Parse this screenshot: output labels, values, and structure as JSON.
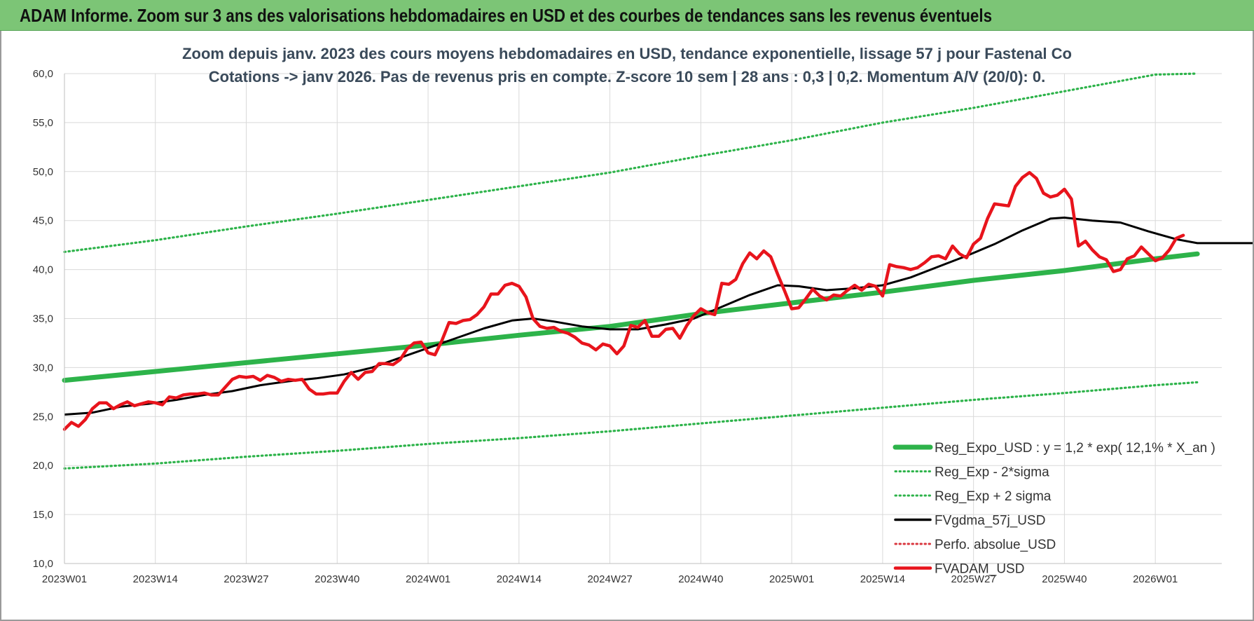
{
  "banner": {
    "title": "ADAM Informe. Zoom sur 3 ans des valorisations hebdomadaires en USD et des courbes de tendances sans les revenus éventuels"
  },
  "colors": {
    "banner_bg": "#7cc576",
    "regression": "#2db34a",
    "bands": "#2db34a",
    "smoothing": "#000000",
    "perfo": "#d9363e",
    "fvadam": "#e8141c",
    "grid": "#d9d9d9"
  },
  "chart_data": {
    "type": "line",
    "title": [
      "Zoom depuis janv. 2023 des cours moyens hebdomadaires en USD, tendance exponentielle, lissage 57 j pour Fastenal Co",
      "Cotations -> janv 2026. Pas de revenus pris en compte. Z-score 10 sem | 28 ans : 0,3 | 0,2. Momentum A/V (20/0): 0."
    ],
    "xlabel": "",
    "ylabel": "",
    "ylim": [
      10,
      60
    ],
    "y_ticks": [
      "10,0",
      "15,0",
      "20,0",
      "25,0",
      "30,0",
      "35,0",
      "40,0",
      "45,0",
      "50,0",
      "55,0",
      "60,0"
    ],
    "x_range_weeks": [
      0,
      162
    ],
    "x_ticks": [
      {
        "label": "2023W01",
        "week": 0
      },
      {
        "label": "2023W14",
        "week": 13
      },
      {
        "label": "2023W27",
        "week": 26
      },
      {
        "label": "2023W40",
        "week": 39
      },
      {
        "label": "2024W01",
        "week": 52
      },
      {
        "label": "2024W14",
        "week": 65
      },
      {
        "label": "2024W27",
        "week": 78
      },
      {
        "label": "2024W40",
        "week": 91
      },
      {
        "label": "2025W01",
        "week": 104
      },
      {
        "label": "2025W14",
        "week": 117
      },
      {
        "label": "2025W27",
        "week": 130
      },
      {
        "label": "2025W40",
        "week": 143
      },
      {
        "label": "2026W01",
        "week": 156
      }
    ],
    "grid": true,
    "legend_position": "bottom-right",
    "series": [
      {
        "name": "Reg_Expo_USD : y = 1,2 * exp( 12,1% *  X_an )",
        "style": "thick-solid",
        "color": "#2db34a",
        "points": [
          [
            0,
            28.7
          ],
          [
            13,
            29.6
          ],
          [
            26,
            30.5
          ],
          [
            39,
            31.4
          ],
          [
            52,
            32.3
          ],
          [
            65,
            33.3
          ],
          [
            78,
            34.2
          ],
          [
            91,
            35.5
          ],
          [
            104,
            36.6
          ],
          [
            117,
            37.7
          ],
          [
            130,
            38.9
          ],
          [
            143,
            39.9
          ],
          [
            156,
            41.1
          ],
          [
            162,
            41.6
          ]
        ]
      },
      {
        "name": "Reg_Exp - 2*sigma",
        "style": "dotted",
        "color": "#2db34a",
        "points": [
          [
            0,
            19.7
          ],
          [
            13,
            20.2
          ],
          [
            26,
            20.9
          ],
          [
            39,
            21.5
          ],
          [
            52,
            22.2
          ],
          [
            65,
            22.8
          ],
          [
            78,
            23.5
          ],
          [
            91,
            24.3
          ],
          [
            104,
            25.1
          ],
          [
            117,
            25.9
          ],
          [
            130,
            26.7
          ],
          [
            143,
            27.4
          ],
          [
            156,
            28.2
          ],
          [
            162,
            28.5
          ]
        ]
      },
      {
        "name": "Reg_Exp + 2 sigma",
        "style": "dotted",
        "color": "#2db34a",
        "points": [
          [
            0,
            41.8
          ],
          [
            13,
            43.0
          ],
          [
            26,
            44.4
          ],
          [
            39,
            45.7
          ],
          [
            52,
            47.1
          ],
          [
            65,
            48.5
          ],
          [
            78,
            49.9
          ],
          [
            91,
            51.6
          ],
          [
            104,
            53.2
          ],
          [
            117,
            55.0
          ],
          [
            130,
            56.5
          ],
          [
            143,
            58.2
          ],
          [
            156,
            59.9
          ],
          [
            162,
            60.0
          ]
        ]
      },
      {
        "name": "FVgdma_57j_USD",
        "style": "solid",
        "color": "#000000",
        "points": [
          [
            0,
            25.2
          ],
          [
            4,
            25.4
          ],
          [
            8,
            26.0
          ],
          [
            12,
            26.3
          ],
          [
            16,
            26.7
          ],
          [
            20,
            27.2
          ],
          [
            24,
            27.6
          ],
          [
            28,
            28.2
          ],
          [
            32,
            28.6
          ],
          [
            36,
            28.9
          ],
          [
            40,
            29.3
          ],
          [
            44,
            30.0
          ],
          [
            48,
            31.0
          ],
          [
            52,
            32.0
          ],
          [
            56,
            33.0
          ],
          [
            60,
            34.0
          ],
          [
            64,
            34.8
          ],
          [
            67,
            35.0
          ],
          [
            70,
            34.7
          ],
          [
            74,
            34.2
          ],
          [
            78,
            33.9
          ],
          [
            82,
            33.9
          ],
          [
            86,
            34.4
          ],
          [
            90,
            35.0
          ],
          [
            94,
            36.2
          ],
          [
            98,
            37.4
          ],
          [
            102,
            38.4
          ],
          [
            105,
            38.3
          ],
          [
            109,
            37.9
          ],
          [
            113,
            38.1
          ],
          [
            117,
            38.4
          ],
          [
            121,
            39.2
          ],
          [
            125,
            40.3
          ],
          [
            129,
            41.4
          ],
          [
            133,
            42.6
          ],
          [
            137,
            44.0
          ],
          [
            141,
            45.2
          ],
          [
            143,
            45.3
          ],
          [
            147,
            45.0
          ],
          [
            151,
            44.8
          ],
          [
            155,
            43.9
          ],
          [
            159,
            43.1
          ],
          [
            162,
            42.7
          ],
          [
            166,
            42.7
          ],
          [
            170,
            42.7
          ],
          [
            173,
            43.0
          ],
          [
            175,
            43.0
          ]
        ]
      },
      {
        "name": "Perfo. absolue_USD",
        "style": "dotted",
        "color": "#d9363e",
        "points": []
      },
      {
        "name": "FVADAM_USD",
        "style": "thick-solid",
        "color": "#e8141c",
        "points": [
          [
            0,
            23.7
          ],
          [
            1,
            24.4
          ],
          [
            2,
            24.0
          ],
          [
            3,
            24.7
          ],
          [
            4,
            25.8
          ],
          [
            5,
            26.4
          ],
          [
            6,
            26.4
          ],
          [
            7,
            25.8
          ],
          [
            8,
            26.2
          ],
          [
            9,
            26.5
          ],
          [
            10,
            26.1
          ],
          [
            11,
            26.3
          ],
          [
            12,
            26.5
          ],
          [
            13,
            26.4
          ],
          [
            14,
            26.2
          ],
          [
            15,
            27.0
          ],
          [
            16,
            26.9
          ],
          [
            17,
            27.2
          ],
          [
            18,
            27.3
          ],
          [
            19,
            27.3
          ],
          [
            20,
            27.4
          ],
          [
            21,
            27.2
          ],
          [
            22,
            27.2
          ],
          [
            23,
            28.0
          ],
          [
            24,
            28.8
          ],
          [
            25,
            29.1
          ],
          [
            26,
            29.0
          ],
          [
            27,
            29.1
          ],
          [
            28,
            28.7
          ],
          [
            29,
            29.2
          ],
          [
            30,
            29.0
          ],
          [
            31,
            28.6
          ],
          [
            32,
            28.8
          ],
          [
            33,
            28.7
          ],
          [
            34,
            28.8
          ],
          [
            35,
            27.8
          ],
          [
            36,
            27.3
          ],
          [
            37,
            27.3
          ],
          [
            38,
            27.4
          ],
          [
            39,
            27.4
          ],
          [
            40,
            28.6
          ],
          [
            41,
            29.5
          ],
          [
            42,
            28.8
          ],
          [
            43,
            29.5
          ],
          [
            44,
            29.6
          ],
          [
            45,
            30.4
          ],
          [
            46,
            30.4
          ],
          [
            47,
            30.3
          ],
          [
            48,
            30.8
          ],
          [
            49,
            31.9
          ],
          [
            50,
            32.5
          ],
          [
            51,
            32.6
          ],
          [
            52,
            31.5
          ],
          [
            53,
            31.3
          ],
          [
            54,
            32.8
          ],
          [
            55,
            34.6
          ],
          [
            56,
            34.5
          ],
          [
            57,
            34.8
          ],
          [
            58,
            34.9
          ],
          [
            59,
            35.4
          ],
          [
            60,
            36.2
          ],
          [
            61,
            37.5
          ],
          [
            62,
            37.5
          ],
          [
            63,
            38.4
          ],
          [
            64,
            38.6
          ],
          [
            65,
            38.3
          ],
          [
            66,
            37.2
          ],
          [
            67,
            35.0
          ],
          [
            68,
            34.2
          ],
          [
            69,
            34.0
          ],
          [
            70,
            34.1
          ],
          [
            71,
            33.7
          ],
          [
            72,
            33.5
          ],
          [
            73,
            33.1
          ],
          [
            74,
            32.5
          ],
          [
            75,
            32.3
          ],
          [
            76,
            31.8
          ],
          [
            77,
            32.4
          ],
          [
            78,
            32.2
          ],
          [
            79,
            31.4
          ],
          [
            80,
            32.2
          ],
          [
            81,
            34.3
          ],
          [
            82,
            34.1
          ],
          [
            83,
            34.8
          ],
          [
            84,
            33.2
          ],
          [
            85,
            33.2
          ],
          [
            86,
            33.9
          ],
          [
            87,
            34.0
          ],
          [
            88,
            33.0
          ],
          [
            89,
            34.3
          ],
          [
            90,
            35.3
          ],
          [
            91,
            36.0
          ],
          [
            92,
            35.6
          ],
          [
            93,
            35.4
          ],
          [
            94,
            38.6
          ],
          [
            95,
            38.5
          ],
          [
            96,
            39.0
          ],
          [
            97,
            40.6
          ],
          [
            98,
            41.7
          ],
          [
            99,
            41.1
          ],
          [
            100,
            41.9
          ],
          [
            101,
            41.3
          ],
          [
            102,
            39.5
          ],
          [
            103,
            37.8
          ],
          [
            104,
            36.0
          ],
          [
            105,
            36.1
          ],
          [
            106,
            37.0
          ],
          [
            107,
            38.0
          ],
          [
            108,
            37.3
          ],
          [
            109,
            36.9
          ],
          [
            110,
            37.4
          ],
          [
            111,
            37.3
          ],
          [
            112,
            37.9
          ],
          [
            113,
            38.4
          ],
          [
            114,
            37.9
          ],
          [
            115,
            38.5
          ],
          [
            116,
            38.3
          ],
          [
            117,
            37.3
          ],
          [
            118,
            40.5
          ],
          [
            119,
            40.3
          ],
          [
            120,
            40.2
          ],
          [
            121,
            40.0
          ],
          [
            122,
            40.2
          ],
          [
            123,
            40.7
          ],
          [
            124,
            41.3
          ],
          [
            125,
            41.4
          ],
          [
            126,
            41.1
          ],
          [
            127,
            42.4
          ],
          [
            128,
            41.6
          ],
          [
            129,
            41.2
          ],
          [
            130,
            42.6
          ],
          [
            131,
            43.2
          ],
          [
            132,
            45.2
          ],
          [
            133,
            46.7
          ],
          [
            134,
            46.6
          ],
          [
            135,
            46.5
          ],
          [
            136,
            48.5
          ],
          [
            137,
            49.4
          ],
          [
            138,
            49.9
          ],
          [
            139,
            49.3
          ],
          [
            140,
            47.8
          ],
          [
            141,
            47.4
          ],
          [
            142,
            47.6
          ],
          [
            143,
            48.2
          ],
          [
            144,
            47.2
          ],
          [
            145,
            42.4
          ],
          [
            146,
            42.9
          ],
          [
            147,
            42.0
          ],
          [
            148,
            41.3
          ],
          [
            149,
            41.0
          ],
          [
            150,
            39.8
          ],
          [
            151,
            40.0
          ],
          [
            152,
            41.1
          ],
          [
            153,
            41.4
          ],
          [
            154,
            42.3
          ],
          [
            155,
            41.6
          ],
          [
            156,
            40.9
          ],
          [
            157,
            41.2
          ],
          [
            158,
            42.0
          ],
          [
            159,
            43.2
          ],
          [
            160,
            43.5
          ]
        ]
      }
    ]
  }
}
